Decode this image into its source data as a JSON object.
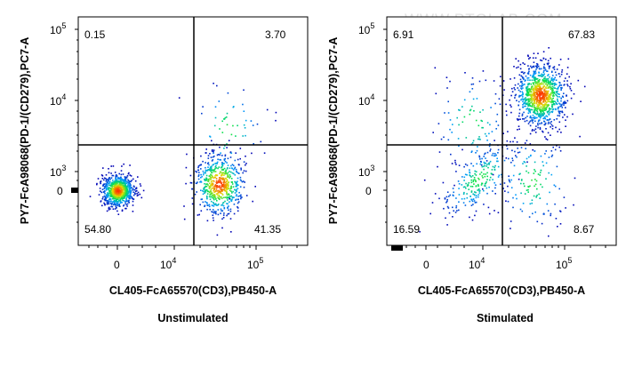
{
  "watermark": "WWW.PTGLAB.COM",
  "chart_data": [
    {
      "type": "scatter",
      "subtitle": "Unstimulated",
      "xlabel": "CL405-FcA65570(CD3),PB450-A",
      "ylabel": "PY7-FcA98068(PD-1/(CD279),PC7-A",
      "x_ticks": [
        "0",
        "10^4",
        "10^5"
      ],
      "y_ticks": [
        "0",
        "10^3",
        "10^4",
        "10^5"
      ],
      "x_scale": "biexponential",
      "y_scale": "biexponential",
      "quadrants": {
        "top_left": "0.15",
        "top_right": "3.70",
        "bottom_left": "54.80",
        "bottom_right": "41.35"
      },
      "populations": [
        {
          "name": "",
          "center_x": 0,
          "center_y": 0,
          "spread": "tight",
          "fraction": 0.548
        },
        {
          "name": "",
          "center_x": 35000,
          "center_y": 100,
          "spread": "medium",
          "fraction": 0.4135
        },
        {
          "name": "",
          "center_x": 45000,
          "center_y": 4000,
          "spread": "wide",
          "fraction": 0.037
        }
      ],
      "colormap": [
        "#0000b4",
        "#00a0ff",
        "#00e050",
        "#e0e000",
        "#ff3000"
      ],
      "grid": false
    },
    {
      "type": "scatter",
      "subtitle": "Stimulated",
      "xlabel": "CL405-FcA65570(CD3),PB450-A",
      "ylabel": "PY7-FcA98068(PD-1/(CD279),PC7-A",
      "x_ticks": [
        "0",
        "10^4",
        "10^5"
      ],
      "y_ticks": [
        "0",
        "10^3",
        "10^4",
        "10^5"
      ],
      "x_scale": "biexponential",
      "y_scale": "biexponential",
      "quadrants": {
        "top_left": "6.91",
        "top_right": "67.83",
        "bottom_left": "16.59",
        "bottom_right": "8.67"
      },
      "populations": [
        {
          "name": "",
          "center_x": 50000,
          "center_y": 12000,
          "spread": "medium",
          "fraction": 0.6783
        },
        {
          "name": "",
          "center_x": 8000,
          "center_y": 300,
          "spread": "diagonal",
          "fraction": 0.1659
        },
        {
          "name": "",
          "center_x": 40000,
          "center_y": 200,
          "spread": "wide",
          "fraction": 0.0867
        },
        {
          "name": "",
          "center_x": 5000,
          "center_y": 5000,
          "spread": "wide",
          "fraction": 0.0691
        }
      ],
      "colormap": [
        "#0000b4",
        "#00a0ff",
        "#00e050",
        "#e0e000",
        "#ff3000"
      ],
      "grid": false
    }
  ]
}
